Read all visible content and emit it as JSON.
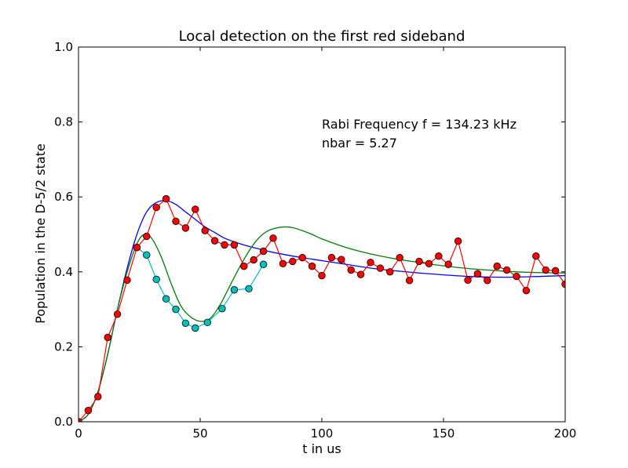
{
  "chart_data": {
    "type": "line",
    "title": "Local detection on the first red sideband",
    "xlabel": "t in us",
    "ylabel": "Population in the D-5/2 state",
    "xlim": [
      0,
      200
    ],
    "ylim": [
      0,
      1.0
    ],
    "x_ticks": [
      0,
      50,
      100,
      150,
      200
    ],
    "y_ticks": [
      0.0,
      0.2,
      0.4,
      0.6,
      0.8,
      1.0
    ],
    "x_tick_labels": [
      "0",
      "50",
      "100",
      "150",
      "200"
    ],
    "y_tick_labels": [
      "0.0",
      "0.2",
      "0.4",
      "0.6",
      "0.8",
      "1.0"
    ],
    "grid": false,
    "annotations": [
      "Rabi Frequency f = 134.23 kHz",
      "nbar = 5.27"
    ],
    "series": [
      {
        "kind": "curve",
        "color": "#0000ff",
        "x": [
          0,
          4,
          8,
          12,
          16,
          20,
          24,
          28,
          32,
          36,
          40,
          44,
          48,
          52,
          56,
          60,
          65,
          70,
          75,
          80,
          90,
          100,
          110,
          120,
          130,
          140,
          150,
          160,
          170,
          180,
          190,
          200
        ],
        "y": [
          0.0,
          0.02,
          0.08,
          0.18,
          0.3,
          0.41,
          0.5,
          0.56,
          0.585,
          0.59,
          0.58,
          0.56,
          0.54,
          0.52,
          0.505,
          0.49,
          0.478,
          0.468,
          0.46,
          0.452,
          0.44,
          0.43,
          0.42,
          0.41,
          0.403,
          0.397,
          0.392,
          0.388,
          0.386,
          0.386,
          0.388,
          0.39
        ]
      },
      {
        "kind": "curve",
        "color": "#008000",
        "x": [
          0,
          4,
          8,
          12,
          16,
          20,
          24,
          27,
          30,
          34,
          38,
          42,
          46,
          50,
          54,
          58,
          62,
          66,
          70,
          74,
          78,
          82,
          85,
          88,
          92,
          96,
          100,
          110,
          120,
          130,
          140,
          150,
          160,
          170,
          180,
          190,
          200
        ],
        "y": [
          0.0,
          0.02,
          0.08,
          0.18,
          0.3,
          0.4,
          0.475,
          0.5,
          0.49,
          0.44,
          0.37,
          0.31,
          0.28,
          0.268,
          0.275,
          0.31,
          0.36,
          0.41,
          0.455,
          0.49,
          0.51,
          0.518,
          0.52,
          0.518,
          0.51,
          0.5,
          0.488,
          0.465,
          0.448,
          0.435,
          0.425,
          0.416,
          0.409,
          0.404,
          0.4,
          0.398,
          0.397
        ]
      },
      {
        "kind": "points",
        "color": "#00bfbf",
        "x": [
          24,
          28,
          32,
          36,
          40,
          44,
          48,
          53,
          59,
          64,
          70,
          76
        ],
        "y": [
          0.465,
          0.445,
          0.38,
          0.328,
          0.3,
          0.263,
          0.25,
          0.265,
          0.302,
          0.352,
          0.355,
          0.42
        ]
      },
      {
        "kind": "points",
        "color": "#ff0000",
        "x": [
          0,
          4,
          8,
          12,
          16,
          20,
          24,
          28,
          32,
          36,
          40,
          44,
          48,
          52,
          56,
          60,
          64,
          68,
          72,
          76,
          80,
          84,
          88,
          92,
          96,
          100,
          104,
          108,
          112,
          116,
          120,
          124,
          128,
          132,
          136,
          140,
          144,
          148,
          152,
          156,
          160,
          164,
          168,
          172,
          176,
          180,
          184,
          188,
          192,
          196,
          200
        ],
        "y": [
          0.0,
          0.03,
          0.067,
          0.225,
          0.287,
          0.378,
          0.465,
          0.495,
          0.572,
          0.595,
          0.535,
          0.517,
          0.567,
          0.51,
          0.483,
          0.472,
          0.472,
          0.415,
          0.432,
          0.455,
          0.49,
          0.422,
          0.428,
          0.438,
          0.415,
          0.39,
          0.438,
          0.433,
          0.405,
          0.393,
          0.425,
          0.41,
          0.4,
          0.438,
          0.377,
          0.428,
          0.422,
          0.442,
          0.42,
          0.482,
          0.378,
          0.395,
          0.377,
          0.415,
          0.405,
          0.388,
          0.35,
          0.442,
          0.405,
          0.403,
          0.367
        ]
      }
    ]
  }
}
